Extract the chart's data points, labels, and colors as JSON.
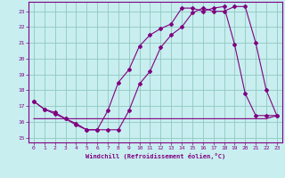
{
  "xlabel": "Windchill (Refroidissement éolien,°C)",
  "x_ticks": [
    0,
    1,
    2,
    3,
    4,
    5,
    6,
    7,
    8,
    9,
    10,
    11,
    12,
    13,
    14,
    15,
    16,
    17,
    18,
    19,
    20,
    21,
    22,
    23
  ],
  "y_ticks": [
    15,
    16,
    17,
    18,
    19,
    20,
    21,
    22,
    23
  ],
  "ylim": [
    14.7,
    23.6
  ],
  "xlim": [
    -0.5,
    23.5
  ],
  "line1_x": [
    0,
    1,
    2,
    3,
    4,
    5,
    6,
    7,
    8,
    9,
    10,
    11,
    12,
    13,
    14,
    15,
    16,
    17,
    18,
    19,
    20,
    21,
    22,
    23
  ],
  "line1_y": [
    17.3,
    16.8,
    16.5,
    16.2,
    15.9,
    15.5,
    15.5,
    16.7,
    18.5,
    19.3,
    20.8,
    21.5,
    21.9,
    22.2,
    23.2,
    23.2,
    23.0,
    23.2,
    23.3,
    20.9,
    17.8,
    16.4,
    16.4,
    16.4
  ],
  "line2_x": [
    0,
    1,
    2,
    3,
    4,
    5,
    6,
    7,
    8,
    9,
    10,
    11,
    12,
    13,
    14,
    15,
    16,
    17,
    18,
    19,
    20,
    21,
    22,
    23
  ],
  "line2_y": [
    17.3,
    16.8,
    16.6,
    16.2,
    15.8,
    15.5,
    15.5,
    15.5,
    15.5,
    16.7,
    18.4,
    19.2,
    20.7,
    21.5,
    22.0,
    22.9,
    23.2,
    23.0,
    23.0,
    23.3,
    23.3,
    21.0,
    18.0,
    16.4
  ],
  "line3_x": [
    0,
    3,
    10,
    15,
    20,
    22,
    23
  ],
  "line3_y": [
    16.2,
    16.2,
    16.2,
    16.2,
    16.2,
    16.2,
    16.4
  ],
  "line_color": "#800080",
  "bg_color": "#c8eef0",
  "grid_color": "#90c8c0",
  "font_family": "monospace"
}
